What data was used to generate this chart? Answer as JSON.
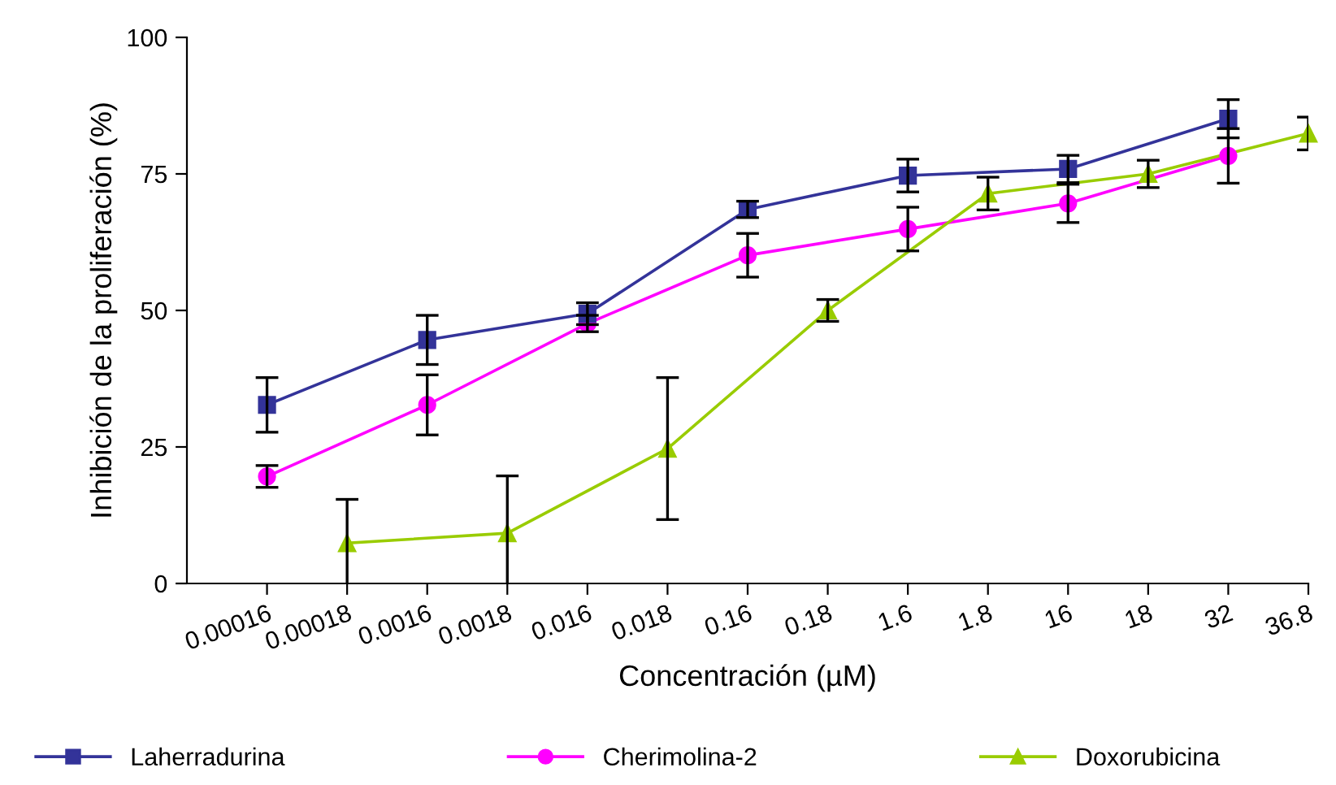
{
  "chart_data": {
    "type": "line",
    "xlabel": "Concentración (µM)",
    "ylabel": "Inhibición de la proliferación (%)",
    "categories": [
      "0.00016",
      "0.00018",
      "0.0016",
      "0.0018",
      "0.016",
      "0.018",
      "0.16",
      "0.18",
      "1.6",
      "1.8",
      "16",
      "18",
      "32",
      "36.8"
    ],
    "series": [
      {
        "name": "Laherradurina",
        "color": "#333399",
        "marker": "square",
        "values": [
          32.7,
          null,
          44.6,
          null,
          49.4,
          null,
          68.5,
          null,
          74.7,
          null,
          75.9,
          null,
          85.1,
          null
        ],
        "errors": [
          5,
          null,
          4.5,
          null,
          2,
          null,
          1.5,
          null,
          3,
          null,
          2.5,
          null,
          3.5,
          null
        ]
      },
      {
        "name": "Cherimolina-2",
        "color": "#ff00ff",
        "marker": "circle",
        "values": [
          19.6,
          null,
          32.7,
          null,
          47.6,
          null,
          60.1,
          null,
          64.9,
          null,
          69.6,
          null,
          78.3,
          null
        ],
        "errors": [
          2,
          null,
          5.5,
          null,
          1.5,
          null,
          4,
          null,
          4,
          null,
          3.5,
          null,
          5,
          null
        ]
      },
      {
        "name": "Doxorubicina",
        "color": "#99cc00",
        "marker": "triangle",
        "values": [
          null,
          7.4,
          null,
          9.2,
          null,
          24.7,
          null,
          50.0,
          null,
          71.4,
          null,
          75.0,
          null,
          82.4
        ],
        "errors": [
          null,
          8,
          null,
          10.5,
          null,
          13,
          null,
          2,
          null,
          3,
          null,
          2.5,
          null,
          3
        ]
      }
    ],
    "ylim": [
      0,
      100
    ],
    "yticks": [
      0,
      25,
      50,
      75,
      100
    ],
    "grid": false,
    "legend": "bottom"
  }
}
